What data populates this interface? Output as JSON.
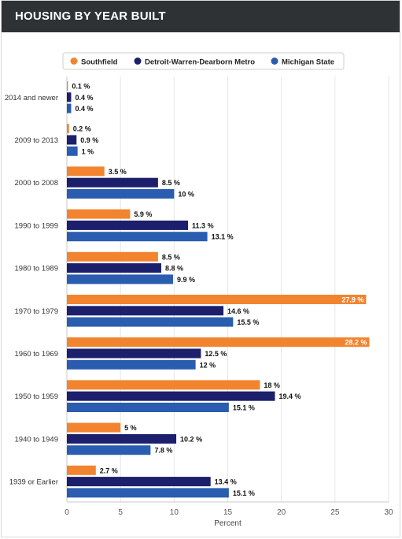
{
  "header": {
    "title": "HOUSING BY YEAR BUILT"
  },
  "chart_data": {
    "type": "bar",
    "orientation": "horizontal",
    "categories": [
      "2014 and newer",
      "2009 to 2013",
      "2000 to 2008",
      "1990 to 1999",
      "1980 to 1989",
      "1970 to 1979",
      "1960 to 1969",
      "1950 to 1959",
      "1940 to 1949",
      "1939 or Earlier"
    ],
    "series": [
      {
        "name": "Southfield",
        "color": "#f28430",
        "values": [
          0.1,
          0.2,
          3.5,
          5.9,
          8.5,
          27.9,
          28.2,
          18,
          5,
          2.7
        ]
      },
      {
        "name": "Detroit-Warren-Dearborn Metro",
        "color": "#1c1f6b",
        "values": [
          0.4,
          0.9,
          8.5,
          11.3,
          8.8,
          14.6,
          12.5,
          19.4,
          10.2,
          13.4
        ]
      },
      {
        "name": "Michigan State",
        "color": "#2a5db0",
        "values": [
          0.4,
          1,
          10,
          13.1,
          9.9,
          15.5,
          12,
          15.1,
          7.8,
          15.1
        ]
      }
    ],
    "xlabel": "Percent",
    "xlim": [
      0,
      30
    ],
    "xticks": [
      0,
      5,
      10,
      15,
      20,
      25,
      30
    ],
    "value_suffix": " %",
    "legend_position": "top",
    "grid": true
  }
}
